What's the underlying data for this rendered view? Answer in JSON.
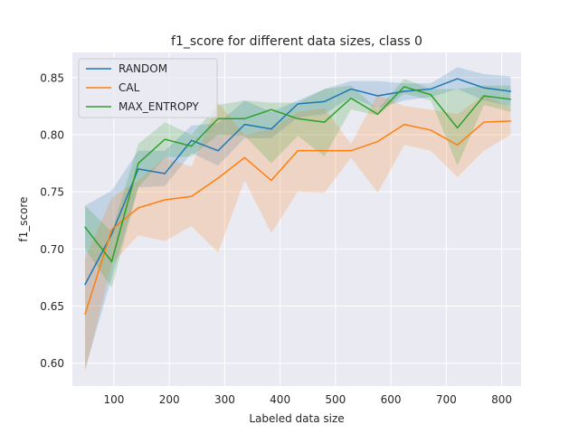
{
  "chart_data": {
    "type": "line",
    "title": "f1_score for different data sizes, class 0",
    "xlabel": "Labeled data size",
    "ylabel": "f1_score",
    "xlim": [
      25,
      835
    ],
    "ylim": [
      0.58,
      0.872
    ],
    "xticks": [
      100,
      200,
      300,
      400,
      500,
      600,
      700,
      800
    ],
    "yticks": [
      0.6,
      0.65,
      0.7,
      0.75,
      0.8,
      0.85
    ],
    "xtick_labels": [
      "100",
      "200",
      "300",
      "400",
      "500",
      "600",
      "700",
      "800"
    ],
    "ytick_labels": [
      "0.60",
      "0.65",
      "0.70",
      "0.75",
      "0.80",
      "0.85"
    ],
    "grid": true,
    "legend_position": "top-left",
    "x": [
      48,
      96,
      144,
      192,
      240,
      288,
      336,
      384,
      432,
      480,
      528,
      576,
      624,
      672,
      720,
      768,
      816
    ],
    "series": [
      {
        "name": "RANDOM",
        "color": "#1f77b4",
        "values": [
          0.669,
          0.713,
          0.77,
          0.766,
          0.795,
          0.786,
          0.809,
          0.805,
          0.827,
          0.829,
          0.84,
          0.834,
          0.838,
          0.84,
          0.849,
          0.841,
          0.838
        ],
        "lower": [
          0.595,
          0.675,
          0.754,
          0.755,
          0.784,
          0.773,
          0.797,
          0.797,
          0.815,
          0.818,
          0.833,
          0.823,
          0.83,
          0.833,
          0.84,
          0.83,
          0.825
        ],
        "upper": [
          0.738,
          0.751,
          0.786,
          0.786,
          0.808,
          0.81,
          0.83,
          0.82,
          0.83,
          0.84,
          0.847,
          0.847,
          0.845,
          0.845,
          0.859,
          0.853,
          0.851
        ]
      },
      {
        "name": "CAL",
        "color": "#ff7f0e",
        "values": [
          0.643,
          0.717,
          0.736,
          0.743,
          0.746,
          0.762,
          0.78,
          0.76,
          0.786,
          0.786,
          0.786,
          0.794,
          0.809,
          0.804,
          0.791,
          0.811,
          0.812
        ],
        "lower": [
          0.592,
          0.687,
          0.712,
          0.707,
          0.72,
          0.697,
          0.76,
          0.714,
          0.75,
          0.749,
          0.78,
          0.749,
          0.791,
          0.786,
          0.763,
          0.786,
          0.8
        ],
        "upper": [
          0.692,
          0.745,
          0.76,
          0.78,
          0.772,
          0.828,
          0.8,
          0.805,
          0.82,
          0.823,
          0.792,
          0.835,
          0.825,
          0.822,
          0.818,
          0.835,
          0.824
        ]
      },
      {
        "name": "MAX_ENTROPY",
        "color": "#2ca02c",
        "values": [
          0.719,
          0.689,
          0.775,
          0.796,
          0.79,
          0.814,
          0.814,
          0.822,
          0.814,
          0.811,
          0.832,
          0.818,
          0.842,
          0.835,
          0.806,
          0.834,
          0.831
        ],
        "lower": [
          0.7,
          0.666,
          0.754,
          0.78,
          0.781,
          0.8,
          0.799,
          0.775,
          0.799,
          0.781,
          0.822,
          0.817,
          0.836,
          0.83,
          0.773,
          0.826,
          0.82
        ],
        "upper": [
          0.738,
          0.715,
          0.792,
          0.811,
          0.8,
          0.826,
          0.83,
          0.828,
          0.828,
          0.84,
          0.843,
          0.822,
          0.849,
          0.84,
          0.84,
          0.843,
          0.843
        ]
      }
    ]
  }
}
